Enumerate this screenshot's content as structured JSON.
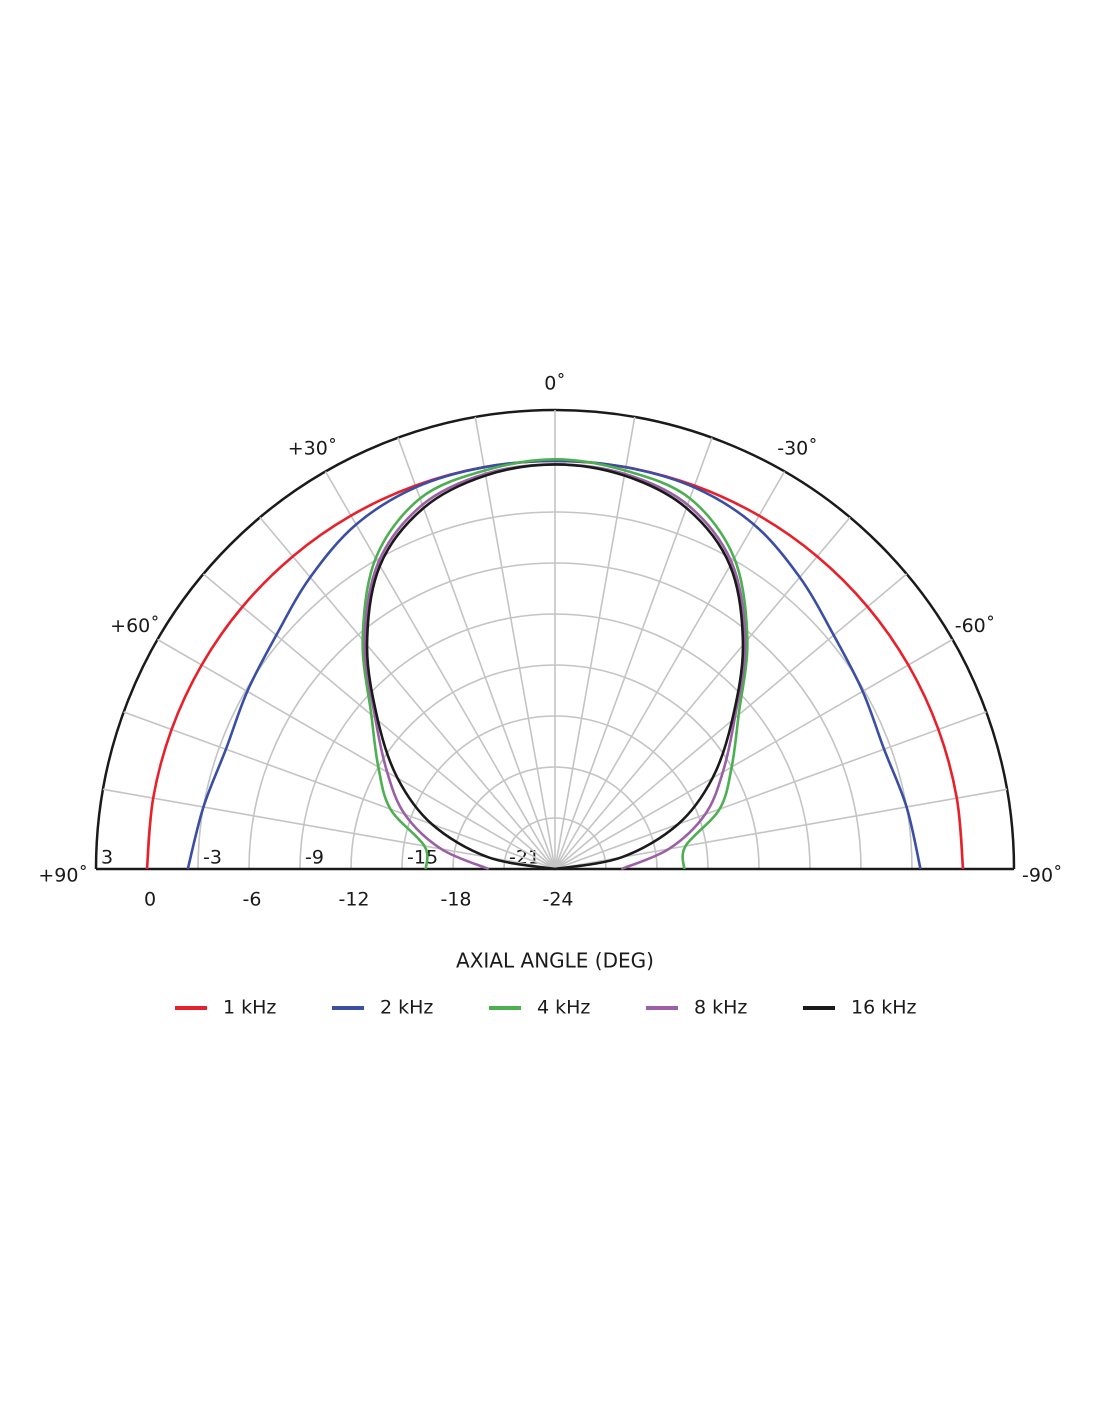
{
  "chart_data": {
    "type": "polar-half",
    "xlabel": "AXIAL ANGLE (DEG)",
    "theta": [
      90,
      80,
      70,
      60,
      50,
      40,
      30,
      20,
      10,
      0,
      -10,
      -20,
      -30,
      -40,
      -50,
      -60,
      -70,
      -80,
      -90
    ],
    "thetaticks": [
      {
        "value": 90,
        "label": "+90˚"
      },
      {
        "value": 60,
        "label": "+60˚"
      },
      {
        "value": 30,
        "label": "+30˚"
      },
      {
        "value": 0,
        "label": "0˚"
      },
      {
        "value": -30,
        "label": "-30˚"
      },
      {
        "value": -60,
        "label": "-60˚"
      },
      {
        "value": -90,
        "label": "-90˚"
      }
    ],
    "rlim": [
      -24,
      3
    ],
    "rticks": [
      3,
      0,
      -3,
      -6,
      -9,
      -12,
      -15,
      -18,
      -21,
      -24
    ],
    "grid": true,
    "series": [
      {
        "name": "1 kHz",
        "color": "#e8202a",
        "values": [
          0,
          0,
          0,
          0,
          0,
          0,
          0,
          0,
          0,
          0,
          0,
          0,
          0,
          0,
          0,
          0,
          0,
          0,
          0
        ]
      },
      {
        "name": "2 kHz",
        "color": "#3a4ea3",
        "values": [
          -2.4,
          -3.0,
          -3.4,
          -3.1,
          -2.6,
          -1.6,
          -0.6,
          -0.1,
          0,
          0,
          0,
          -0.1,
          -0.6,
          -1.6,
          -2.6,
          -3.1,
          -3.4,
          -3.0,
          -2.5
        ]
      },
      {
        "name": "4 kHz",
        "color": "#4caf50",
        "values": [
          -16.4,
          -16.2,
          -13.7,
          -12.0,
          -9.9,
          -6.4,
          -2.9,
          -0.8,
          -0.2,
          0.1,
          -0.2,
          -0.8,
          -2.9,
          -6.4,
          -9.9,
          -12.0,
          -13.7,
          -16.2,
          -16.4
        ]
      },
      {
        "name": "8 kHz",
        "color": "#9b5fa5",
        "values": [
          -20.1,
          -17.2,
          -14.6,
          -12.6,
          -10.2,
          -6.6,
          -3.2,
          -1.2,
          -0.4,
          -0.2,
          -0.4,
          -1.2,
          -3.2,
          -6.6,
          -10.2,
          -12.6,
          -14.6,
          -17.2,
          -20.1
        ]
      },
      {
        "name": "16 kHz",
        "color": "#1a1a1a",
        "values": [
          -24,
          -20.0,
          -16.3,
          -13.3,
          -10.4,
          -6.8,
          -3.4,
          -1.4,
          -0.5,
          -0.2,
          -0.5,
          -1.4,
          -3.4,
          -6.8,
          -10.4,
          -13.3,
          -16.3,
          -20.0,
          -24
        ]
      }
    ]
  }
}
